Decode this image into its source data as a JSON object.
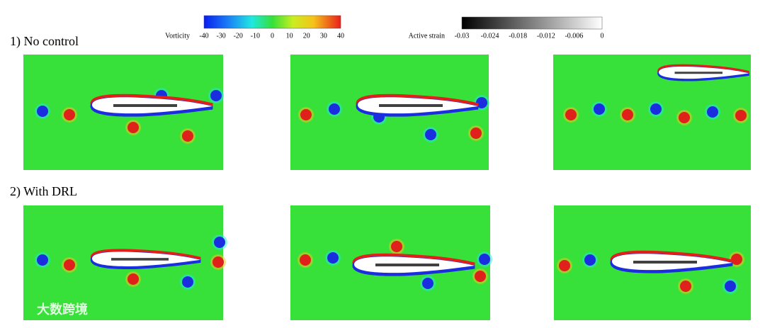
{
  "colorbars": [
    {
      "label": "Vorticity",
      "ticks": [
        -40,
        -30,
        -20,
        -10,
        0,
        10,
        20,
        30,
        40
      ]
    },
    {
      "label": "Active strain",
      "ticks": [
        -0.03,
        -0.024,
        -0.018,
        -0.012,
        -0.006,
        0
      ]
    }
  ],
  "rows": [
    {
      "label": "1) No control"
    },
    {
      "label": "2) With DRL"
    }
  ],
  "watermark": "大数跨境"
}
